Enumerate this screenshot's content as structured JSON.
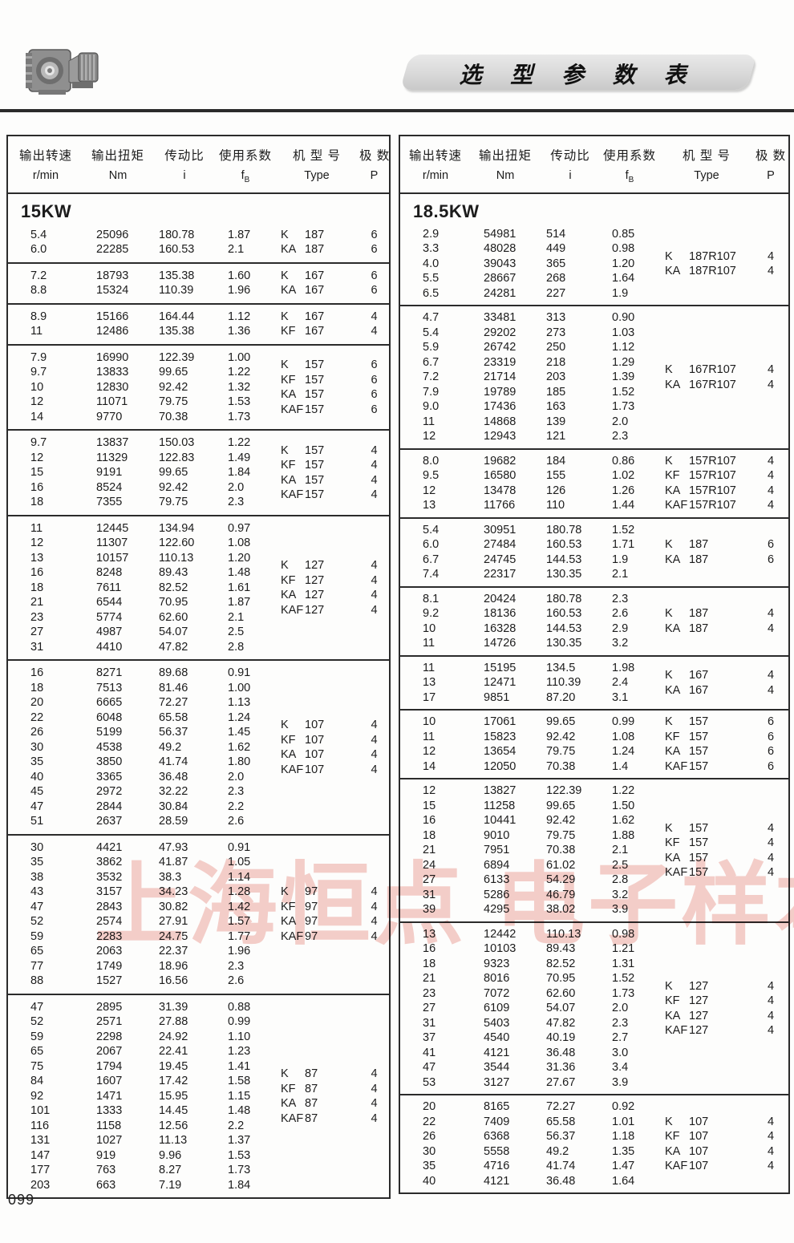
{
  "page": {
    "title": "选 型 参 数 表",
    "number": "099",
    "watermark": "上海恒点 电子样本",
    "accent_colors": {
      "rule": "#2b2b2b",
      "banner": "#d7d7d7",
      "watermark_red": "#e0685c"
    }
  },
  "columns": [
    {
      "cn": "输出转速",
      "unit": "r/min"
    },
    {
      "cn": "输出扭矩",
      "unit": "Nm"
    },
    {
      "cn": "传动比",
      "unit": "i"
    },
    {
      "cn": "使用系数",
      "unit": "fB"
    },
    {
      "cn": "机 型 号",
      "unit": "Type"
    },
    {
      "cn": "极  数",
      "unit": "P"
    }
  ],
  "left_table": {
    "power": "15KW",
    "groups": [
      {
        "rows": [
          [
            "5.4",
            "25096",
            "180.78",
            "1.87"
          ],
          [
            "6.0",
            "22285",
            "160.53",
            "2.1"
          ]
        ],
        "types": [
          [
            "K",
            "187"
          ],
          [
            "KA",
            "187"
          ]
        ],
        "poles": [
          "6",
          "6"
        ]
      },
      {
        "rows": [
          [
            "7.2",
            "18793",
            "135.38",
            "1.60"
          ],
          [
            "8.8",
            "15324",
            "110.39",
            "1.96"
          ]
        ],
        "types": [
          [
            "K",
            "167"
          ],
          [
            "KA",
            "167"
          ]
        ],
        "poles": [
          "6",
          "6"
        ]
      },
      {
        "rows": [
          [
            "8.9",
            "15166",
            "164.44",
            "1.12"
          ],
          [
            "11",
            "12486",
            "135.38",
            "1.36"
          ]
        ],
        "types": [
          [
            "K",
            "167"
          ],
          [
            "KF",
            "167"
          ]
        ],
        "poles": [
          "4",
          "4"
        ]
      },
      {
        "rows": [
          [
            "7.9",
            "16990",
            "122.39",
            "1.00"
          ],
          [
            "9.7",
            "13833",
            "99.65",
            "1.22"
          ],
          [
            "10",
            "12830",
            "92.42",
            "1.32"
          ],
          [
            "12",
            "11071",
            "79.75",
            "1.53"
          ],
          [
            "14",
            "9770",
            "70.38",
            "1.73"
          ]
        ],
        "types": [
          [
            "K",
            "157"
          ],
          [
            "KF",
            "157"
          ],
          [
            "KA",
            "157"
          ],
          [
            "KAF",
            "157"
          ]
        ],
        "poles": [
          "6",
          "6",
          "6",
          "6"
        ]
      },
      {
        "rows": [
          [
            "9.7",
            "13837",
            "150.03",
            "1.22"
          ],
          [
            "12",
            "11329",
            "122.83",
            "1.49"
          ],
          [
            "15",
            "9191",
            "99.65",
            "1.84"
          ],
          [
            "16",
            "8524",
            "92.42",
            "2.0"
          ],
          [
            "18",
            "7355",
            "79.75",
            "2.3"
          ]
        ],
        "types": [
          [
            "K",
            "157"
          ],
          [
            "KF",
            "157"
          ],
          [
            "KA",
            "157"
          ],
          [
            "KAF",
            "157"
          ]
        ],
        "poles": [
          "4",
          "4",
          "4",
          "4"
        ]
      },
      {
        "rows": [
          [
            "11",
            "12445",
            "134.94",
            "0.97"
          ],
          [
            "12",
            "11307",
            "122.60",
            "1.08"
          ],
          [
            "13",
            "10157",
            "110.13",
            "1.20"
          ],
          [
            "16",
            "8248",
            "89.43",
            "1.48"
          ],
          [
            "18",
            "7611",
            "82.52",
            "1.61"
          ],
          [
            "21",
            "6544",
            "70.95",
            "1.87"
          ],
          [
            "23",
            "5774",
            "62.60",
            "2.1"
          ],
          [
            "27",
            "4987",
            "54.07",
            "2.5"
          ],
          [
            "31",
            "4410",
            "47.82",
            "2.8"
          ]
        ],
        "types": [
          [
            "K",
            "127"
          ],
          [
            "KF",
            "127"
          ],
          [
            "KA",
            "127"
          ],
          [
            "KAF",
            "127"
          ]
        ],
        "poles": [
          "4",
          "4",
          "4",
          "4"
        ]
      },
      {
        "rows": [
          [
            "16",
            "8271",
            "89.68",
            "0.91"
          ],
          [
            "18",
            "7513",
            "81.46",
            "1.00"
          ],
          [
            "20",
            "6665",
            "72.27",
            "1.13"
          ],
          [
            "22",
            "6048",
            "65.58",
            "1.24"
          ],
          [
            "26",
            "5199",
            "56.37",
            "1.45"
          ],
          [
            "30",
            "4538",
            "49.2",
            "1.62"
          ],
          [
            "35",
            "3850",
            "41.74",
            "1.80"
          ],
          [
            "40",
            "3365",
            "36.48",
            "2.0"
          ],
          [
            "45",
            "2972",
            "32.22",
            "2.3"
          ],
          [
            "47",
            "2844",
            "30.84",
            "2.2"
          ],
          [
            "51",
            "2637",
            "28.59",
            "2.6"
          ]
        ],
        "types": [
          [
            "K",
            "107"
          ],
          [
            "KF",
            "107"
          ],
          [
            "KA",
            "107"
          ],
          [
            "KAF",
            "107"
          ]
        ],
        "poles": [
          "4",
          "4",
          "4",
          "4"
        ]
      },
      {
        "rows": [
          [
            "30",
            "4421",
            "47.93",
            "0.91"
          ],
          [
            "35",
            "3862",
            "41.87",
            "1.05"
          ],
          [
            "38",
            "3532",
            "38.3",
            "1.14"
          ],
          [
            "43",
            "3157",
            "34.23",
            "1.28"
          ],
          [
            "47",
            "2843",
            "30.82",
            "1.42"
          ],
          [
            "52",
            "2574",
            "27.91",
            "1.57"
          ],
          [
            "59",
            "2283",
            "24.75",
            "1.77"
          ],
          [
            "65",
            "2063",
            "22.37",
            "1.96"
          ],
          [
            "77",
            "1749",
            "18.96",
            "2.3"
          ],
          [
            "88",
            "1527",
            "16.56",
            "2.6"
          ]
        ],
        "types": [
          [
            "K",
            "97"
          ],
          [
            "KF",
            "97"
          ],
          [
            "KA",
            "97"
          ],
          [
            "KAF",
            "97"
          ]
        ],
        "poles": [
          "4",
          "4",
          "4",
          "4"
        ]
      },
      {
        "rows": [
          [
            "47",
            "2895",
            "31.39",
            "0.88"
          ],
          [
            "52",
            "2571",
            "27.88",
            "0.99"
          ],
          [
            "59",
            "2298",
            "24.92",
            "1.10"
          ],
          [
            "65",
            "2067",
            "22.41",
            "1.23"
          ],
          [
            "75",
            "1794",
            "19.45",
            "1.41"
          ],
          [
            "84",
            "1607",
            "17.42",
            "1.58"
          ],
          [
            "92",
            "1471",
            "15.95",
            "1.15"
          ],
          [
            "101",
            "1333",
            "14.45",
            "1.48"
          ],
          [
            "116",
            "1158",
            "12.56",
            "2.2"
          ],
          [
            "131",
            "1027",
            "11.13",
            "1.37"
          ],
          [
            "147",
            "919",
            "9.96",
            "1.53"
          ],
          [
            "177",
            "763",
            "8.27",
            "1.73"
          ],
          [
            "203",
            "663",
            "7.19",
            "1.84"
          ]
        ],
        "types": [
          [
            "K",
            "87"
          ],
          [
            "KF",
            "87"
          ],
          [
            "KA",
            "87"
          ],
          [
            "KAF",
            "87"
          ]
        ],
        "poles": [
          "4",
          "4",
          "4",
          "4"
        ]
      }
    ]
  },
  "right_table": {
    "power": "18.5KW",
    "groups": [
      {
        "rows": [
          [
            "2.9",
            "54981",
            "514",
            "0.85"
          ],
          [
            "3.3",
            "48028",
            "449",
            "0.98"
          ],
          [
            "4.0",
            "39043",
            "365",
            "1.20"
          ],
          [
            "5.5",
            "28667",
            "268",
            "1.64"
          ],
          [
            "6.5",
            "24281",
            "227",
            "1.9"
          ]
        ],
        "types": [
          [
            "K",
            "187R107"
          ],
          [
            "KA",
            "187R107"
          ]
        ],
        "poles": [
          "4",
          "4"
        ]
      },
      {
        "rows": [
          [
            "4.7",
            "33481",
            "313",
            "0.90"
          ],
          [
            "5.4",
            "29202",
            "273",
            "1.03"
          ],
          [
            "5.9",
            "26742",
            "250",
            "1.12"
          ],
          [
            "6.7",
            "23319",
            "218",
            "1.29"
          ],
          [
            "7.2",
            "21714",
            "203",
            "1.39"
          ],
          [
            "7.9",
            "19789",
            "185",
            "1.52"
          ],
          [
            "9.0",
            "17436",
            "163",
            "1.73"
          ],
          [
            "11",
            "14868",
            "139",
            "2.0"
          ],
          [
            "12",
            "12943",
            "121",
            "2.3"
          ]
        ],
        "types": [
          [
            "K",
            "167R107"
          ],
          [
            "KA",
            "167R107"
          ]
        ],
        "poles": [
          "4",
          "4"
        ]
      },
      {
        "rows": [
          [
            "8.0",
            "19682",
            "184",
            "0.86"
          ],
          [
            "9.5",
            "16580",
            "155",
            "1.02"
          ],
          [
            "12",
            "13478",
            "126",
            "1.26"
          ],
          [
            "13",
            "11766",
            "110",
            "1.44"
          ]
        ],
        "types": [
          [
            "K",
            "157R107"
          ],
          [
            "KF",
            "157R107"
          ],
          [
            "KA",
            "157R107"
          ],
          [
            "KAF",
            "157R107"
          ]
        ],
        "poles": [
          "4",
          "4",
          "4",
          "4"
        ]
      },
      {
        "rows": [
          [
            "5.4",
            "30951",
            "180.78",
            "1.52"
          ],
          [
            "6.0",
            "27484",
            "160.53",
            "1.71"
          ],
          [
            "6.7",
            "24745",
            "144.53",
            "1.9"
          ],
          [
            "7.4",
            "22317",
            "130.35",
            "2.1"
          ]
        ],
        "types": [
          [
            "K",
            "187"
          ],
          [
            "KA",
            "187"
          ]
        ],
        "poles": [
          "6",
          "6"
        ]
      },
      {
        "rows": [
          [
            "8.1",
            "20424",
            "180.78",
            "2.3"
          ],
          [
            "9.2",
            "18136",
            "160.53",
            "2.6"
          ],
          [
            "10",
            "16328",
            "144.53",
            "2.9"
          ],
          [
            "11",
            "14726",
            "130.35",
            "3.2"
          ]
        ],
        "types": [
          [
            "K",
            "187"
          ],
          [
            "KA",
            "187"
          ]
        ],
        "poles": [
          "4",
          "4"
        ]
      },
      {
        "rows": [
          [
            "11",
            "15195",
            "134.5",
            "1.98"
          ],
          [
            "13",
            "12471",
            "110.39",
            "2.4"
          ],
          [
            "17",
            "9851",
            "87.20",
            "3.1"
          ]
        ],
        "types": [
          [
            "K",
            "167"
          ],
          [
            "KA",
            "167"
          ]
        ],
        "poles": [
          "4",
          "4"
        ]
      },
      {
        "rows": [
          [
            "10",
            "17061",
            "99.65",
            "0.99"
          ],
          [
            "11",
            "15823",
            "92.42",
            "1.08"
          ],
          [
            "12",
            "13654",
            "79.75",
            "1.24"
          ],
          [
            "14",
            "12050",
            "70.38",
            "1.4"
          ]
        ],
        "types": [
          [
            "K",
            "157"
          ],
          [
            "KF",
            "157"
          ],
          [
            "KA",
            "157"
          ],
          [
            "KAF",
            "157"
          ]
        ],
        "poles": [
          "6",
          "6",
          "6",
          "6"
        ]
      },
      {
        "rows": [
          [
            "12",
            "13827",
            "122.39",
            "1.22"
          ],
          [
            "15",
            "11258",
            "99.65",
            "1.50"
          ],
          [
            "16",
            "10441",
            "92.42",
            "1.62"
          ],
          [
            "18",
            "9010",
            "79.75",
            "1.88"
          ],
          [
            "21",
            "7951",
            "70.38",
            "2.1"
          ],
          [
            "24",
            "6894",
            "61.02",
            "2.5"
          ],
          [
            "27",
            "6133",
            "54.29",
            "2.8"
          ],
          [
            "31",
            "5286",
            "46.79",
            "3.2"
          ],
          [
            "39",
            "4295",
            "38.02",
            "3.9"
          ]
        ],
        "types": [
          [
            "K",
            "157"
          ],
          [
            "KF",
            "157"
          ],
          [
            "KA",
            "157"
          ],
          [
            "KAF",
            "157"
          ]
        ],
        "poles": [
          "4",
          "4",
          "4",
          "4"
        ]
      },
      {
        "rows": [
          [
            "13",
            "12442",
            "110.13",
            "0.98"
          ],
          [
            "16",
            "10103",
            "89.43",
            "1.21"
          ],
          [
            "18",
            "9323",
            "82.52",
            "1.31"
          ],
          [
            "21",
            "8016",
            "70.95",
            "1.52"
          ],
          [
            "23",
            "7072",
            "62.60",
            "1.73"
          ],
          [
            "27",
            "6109",
            "54.07",
            "2.0"
          ],
          [
            "31",
            "5403",
            "47.82",
            "2.3"
          ],
          [
            "37",
            "4540",
            "40.19",
            "2.7"
          ],
          [
            "41",
            "4121",
            "36.48",
            "3.0"
          ],
          [
            "47",
            "3544",
            "31.36",
            "3.4"
          ],
          [
            "53",
            "3127",
            "27.67",
            "3.9"
          ]
        ],
        "types": [
          [
            "K",
            "127"
          ],
          [
            "KF",
            "127"
          ],
          [
            "KA",
            "127"
          ],
          [
            "KAF",
            "127"
          ]
        ],
        "poles": [
          "4",
          "4",
          "4",
          "4"
        ]
      },
      {
        "rows": [
          [
            "20",
            "8165",
            "72.27",
            "0.92"
          ],
          [
            "22",
            "7409",
            "65.58",
            "1.01"
          ],
          [
            "26",
            "6368",
            "56.37",
            "1.18"
          ],
          [
            "30",
            "5558",
            "49.2",
            "1.35"
          ],
          [
            "35",
            "4716",
            "41.74",
            "1.47"
          ],
          [
            "40",
            "4121",
            "36.48",
            "1.64"
          ]
        ],
        "types": [
          [
            "K",
            "107"
          ],
          [
            "KF",
            "107"
          ],
          [
            "KA",
            "107"
          ],
          [
            "KAF",
            "107"
          ]
        ],
        "poles": [
          "4",
          "4",
          "4",
          "4"
        ]
      }
    ]
  }
}
